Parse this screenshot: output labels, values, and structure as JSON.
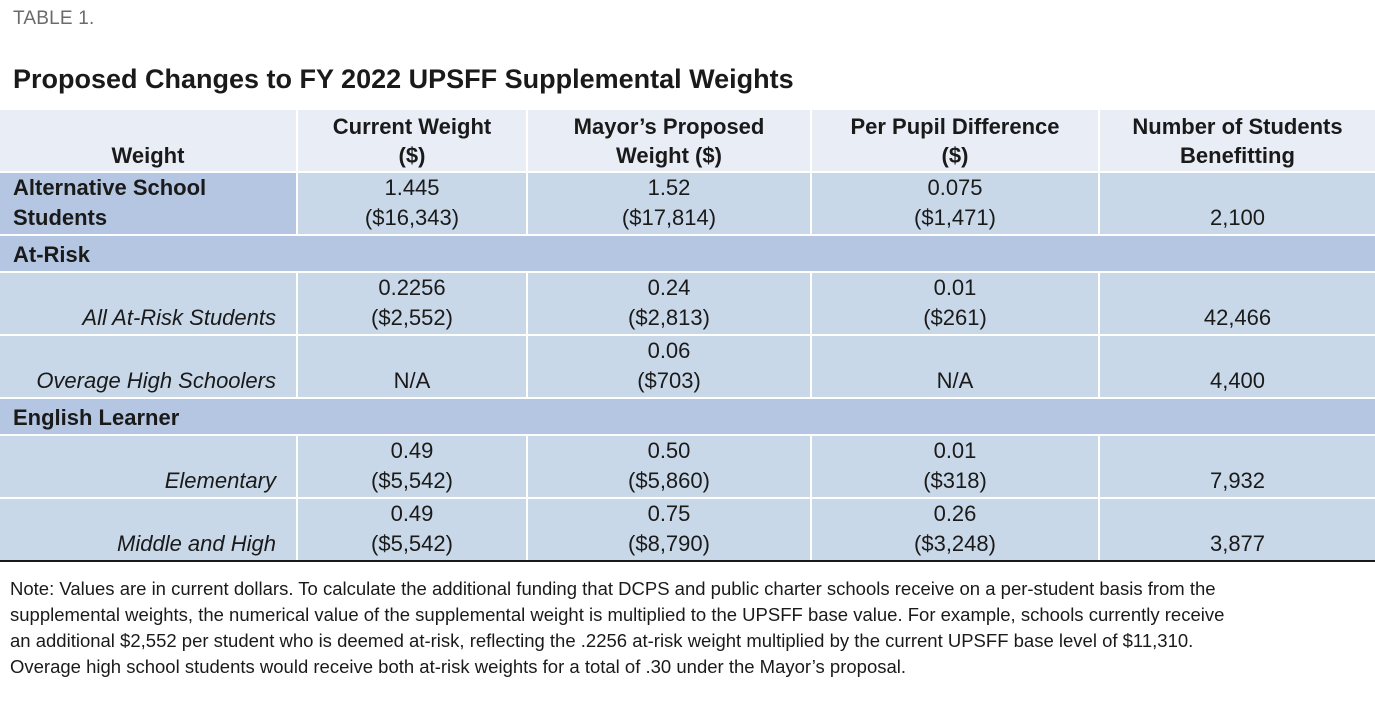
{
  "table_label": "TABLE 1.",
  "title": "Proposed Changes to FY 2022 UPSFF Supplemental Weights",
  "headers": {
    "weight": "Weight",
    "current_l1": "Current Weight",
    "current_l2": "($)",
    "proposed_l1": "Mayor’s Proposed",
    "proposed_l2": "Weight ($)",
    "diff_l1": "Per Pupil Difference",
    "diff_l2": "($)",
    "students_l1": "Number of Students",
    "students_l2": "Benefitting"
  },
  "rows": {
    "alt": {
      "label_l1": "Alternative School",
      "label_l2": "Students",
      "current_l1": "1.445",
      "current_l2": "($16,343)",
      "proposed_l1": "1.52",
      "proposed_l2": "($17,814)",
      "diff_l1": "0.075",
      "diff_l2": "($1,471)",
      "students": "2,100"
    },
    "atrisk_section": "At-Risk",
    "all_atrisk": {
      "label": "All At-Risk Students",
      "current_l1": "0.2256",
      "current_l2": "($2,552)",
      "proposed_l1": "0.24",
      "proposed_l2": "($2,813)",
      "diff_l1": "0.01",
      "diff_l2": "($261)",
      "students": "42,466"
    },
    "overage": {
      "label": "Overage High Schoolers",
      "current": "N/A",
      "proposed_l1": "0.06",
      "proposed_l2": "($703)",
      "diff": "N/A",
      "students": "4,400"
    },
    "el_section": "English Learner",
    "elementary": {
      "label": "Elementary",
      "current_l1": "0.49",
      "current_l2": "($5,542)",
      "proposed_l1": "0.50",
      "proposed_l2": "($5,860)",
      "diff_l1": "0.01",
      "diff_l2": "($318)",
      "students": "7,932"
    },
    "middle_high": {
      "label": "Middle and High",
      "current_l1": "0.49",
      "current_l2": "($5,542)",
      "proposed_l1": "0.75",
      "proposed_l2": "($8,790)",
      "diff_l1": "0.26",
      "diff_l2": "($3,248)",
      "students": "3,877"
    }
  },
  "note": "Note: Values are in current dollars. To calculate the additional funding that DCPS and public charter schools receive on a per-student basis from the supplemental weights, the numerical value of the supplemental weight is multiplied to the UPSFF base value. For example, schools currently receive an additional $2,552 per student who is deemed at-risk, reflecting the .2256 at-risk weight multiplied by the current UPSFF base level of $11,310. Overage high school students would receive both at-risk weights for a total of .30 under the Mayor’s proposal.",
  "colors": {
    "header_bg": "#e9eef6",
    "cell_bg": "#c9d8e8",
    "section_bg": "#b5c6e2",
    "label_gray": "#6b6b6b"
  }
}
